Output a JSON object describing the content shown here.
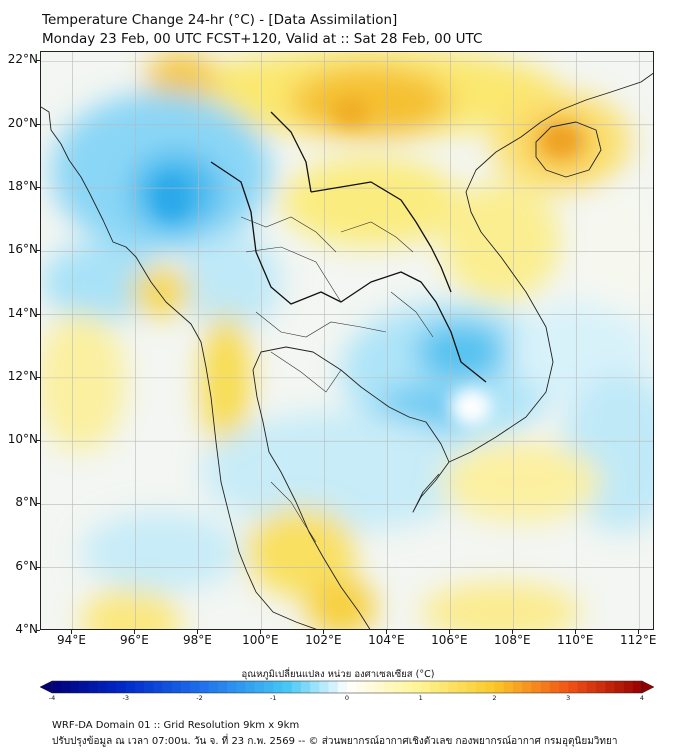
{
  "header": {
    "title_line1": "Temperature Change 24-hr (°C) - [Data Assimilation]",
    "title_line2": "Monday 23 Feb, 00 UTC FCST+120, Valid at :: Sat 28 Feb, 00 UTC"
  },
  "map": {
    "lat_labels": [
      "22°N",
      "20°N",
      "18°N",
      "16°N",
      "14°N",
      "12°N",
      "10°N",
      "8°N",
      "6°N",
      "4°N"
    ],
    "lon_labels": [
      "94°E",
      "96°E",
      "98°E",
      "100°E",
      "102°E",
      "104°E",
      "106°E",
      "108°E",
      "110°E",
      "112°E"
    ],
    "lat_values": [
      22,
      20,
      18,
      16,
      14,
      12,
      10,
      8,
      6,
      4
    ],
    "lon_values": [
      94,
      96,
      98,
      100,
      102,
      104,
      106,
      108,
      110,
      112
    ],
    "lat_range": [
      4,
      22.3
    ],
    "lon_range": [
      93,
      112.5
    ],
    "colors": {
      "cold": "#3dbdf0",
      "neutral": "#ffffff",
      "warm": "#f5d020",
      "hot": "#f0a020",
      "coast": "#222222",
      "grid": "#bbbbbb"
    }
  },
  "colorbar": {
    "title": "อุณหภูมิเปลี่ยนแปลง หน่วย องศาเซลเซียส (°C)",
    "tick_labels": [
      "-4",
      "-3",
      "-2",
      "-1",
      "0",
      "1",
      "2",
      "3",
      "4"
    ],
    "range": [
      -4,
      4
    ]
  },
  "footer": {
    "line1": "WRF-DA Domain 01 :: Grid Resolution 9km x 9km",
    "line2": "ปรับปรุงข้อมูล ณ เวลา 07:00น. วัน จ. ที่ 23 ก.พ. 2569 -- © ส่วนพยากรณ์อากาศเชิงตัวเลข กองพยากรณ์อากาศ กรมอุตุนิยมวิทยา"
  }
}
